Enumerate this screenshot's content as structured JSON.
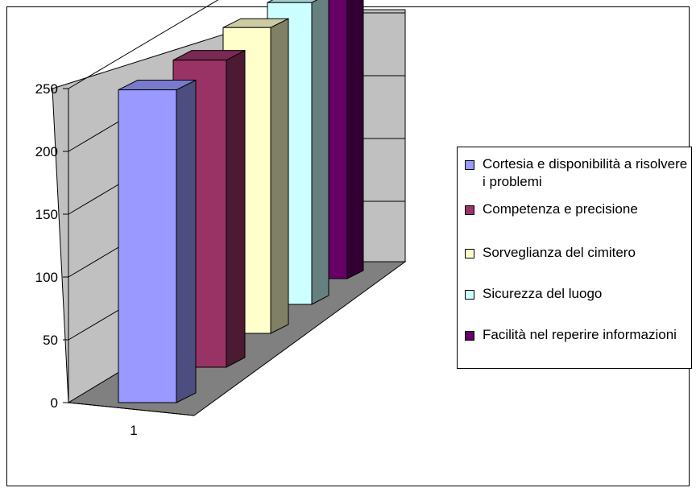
{
  "chart_data": {
    "type": "bar",
    "title": "",
    "xlabel": "",
    "ylabel": "",
    "categories": [
      "1"
    ],
    "ylim": [
      0,
      250
    ],
    "yticks": [
      "0",
      "50",
      "100",
      "150",
      "200",
      "250"
    ],
    "grid": true,
    "legend_position": "right",
    "series": [
      {
        "name": "Cortesia e disponibilità a risolvere i problemi",
        "values": [
          249
        ],
        "color": "#9999FF"
      },
      {
        "name": "Competenza e precisione",
        "values": [
          252
        ],
        "color": "#993366"
      },
      {
        "name": "Sorveglianza del cimitero",
        "values": [
          259
        ],
        "color": "#FFFFCC"
      },
      {
        "name": "Sicurezza del luogo",
        "values": [
          264
        ],
        "color": "#CCFFFF"
      },
      {
        "name": "Facilità nel reperire informazioni",
        "values": [
          270
        ],
        "color": "#660066"
      }
    ]
  }
}
